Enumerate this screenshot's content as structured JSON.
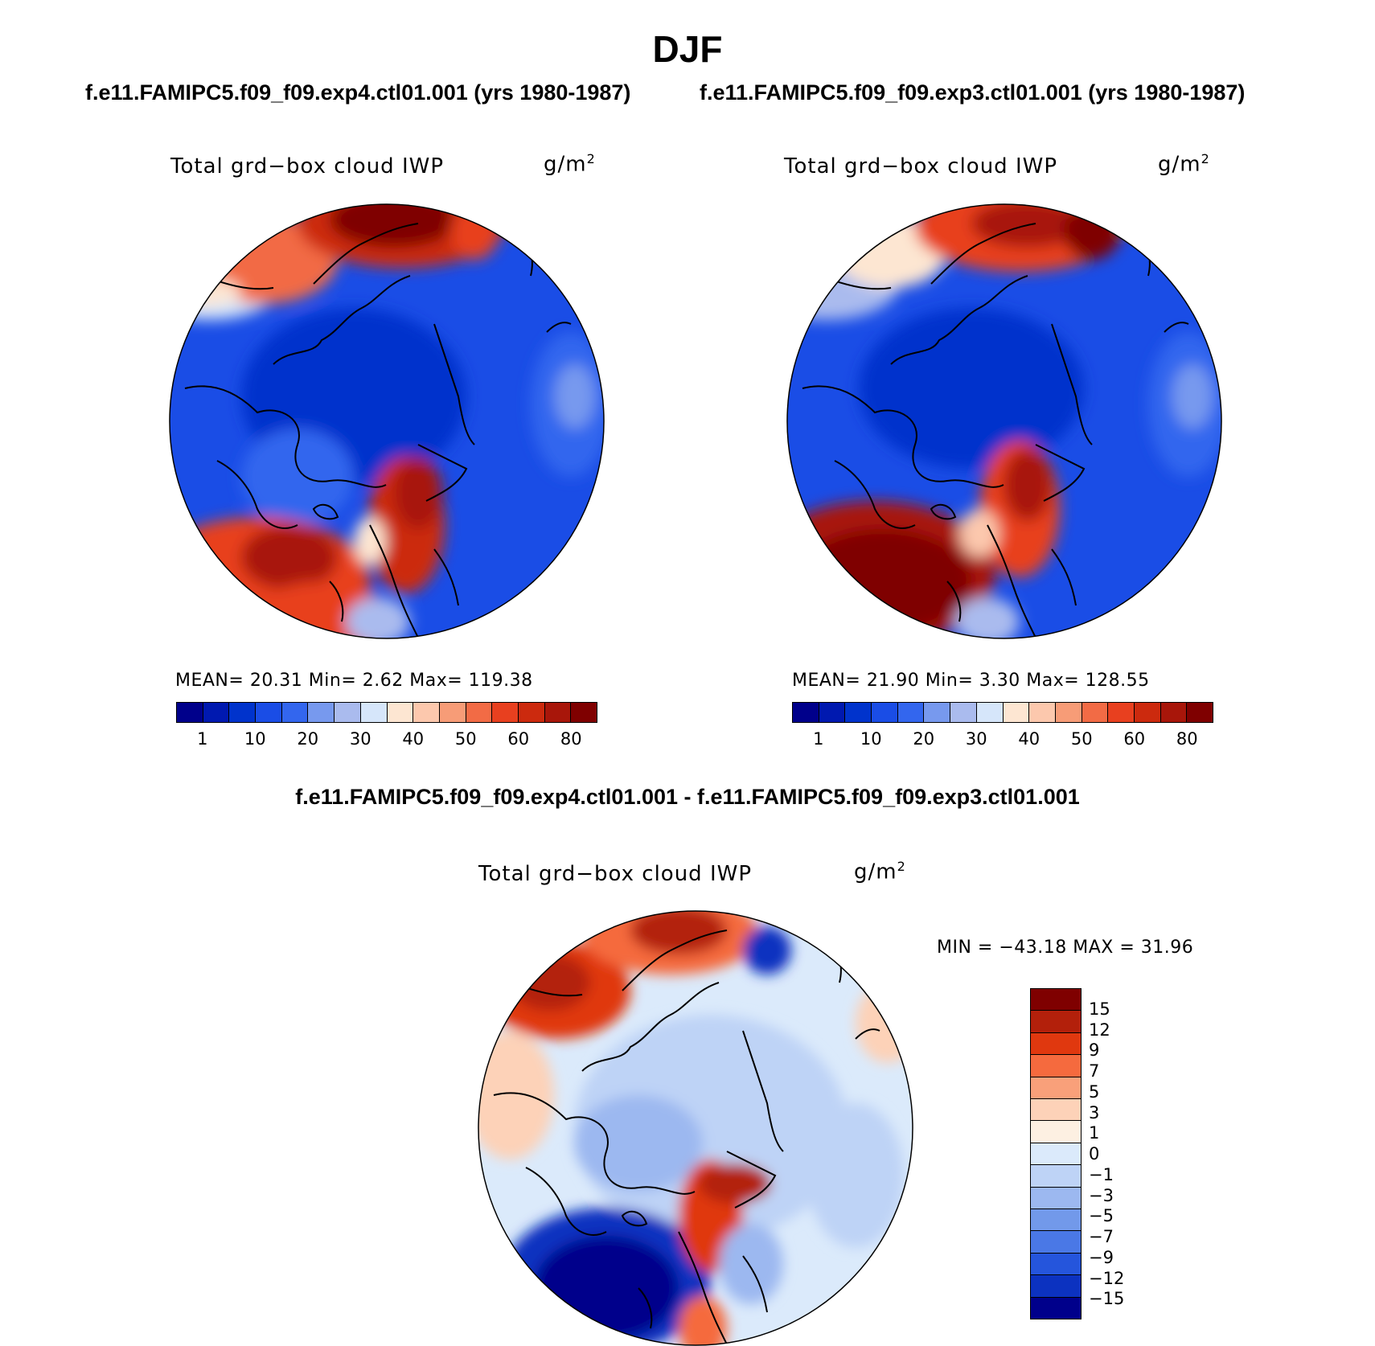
{
  "title": "DJF",
  "panels": [
    {
      "run_title": "f.e11.FAMIPC5.f09_f09.exp4.ctl01.001 (yrs 1980-1987)",
      "var_title": "Total grd−box cloud IWP",
      "unit_base": "g/m",
      "unit_exp": "2",
      "stats": "MEAN=   20.31    Min=     2.62    Max=  119.38"
    },
    {
      "run_title": "f.e11.FAMIPC5.f09_f09.exp3.ctl01.001 (yrs 1980-1987)",
      "var_title": "Total grd−box cloud IWP",
      "unit_base": "g/m",
      "unit_exp": "2",
      "stats": "MEAN=   21.90    Min=     3.30    Max=  128.55"
    }
  ],
  "abs_colorbar": {
    "colors": [
      "#00008b",
      "#0019b0",
      "#0033cc",
      "#1a4de6",
      "#3366ee",
      "#7799ee",
      "#aabbee",
      "#d6e6fa",
      "#fde6d2",
      "#fcc8ad",
      "#f79c77",
      "#f26b45",
      "#e8401f",
      "#cc2a0e",
      "#a8160a",
      "#7f0000"
    ],
    "labels": [
      "1",
      "10",
      "20",
      "30",
      "40",
      "50",
      "60",
      "80"
    ]
  },
  "diff_panel": {
    "title": "f.e11.FAMIPC5.f09_f09.exp4.ctl01.001 - f.e11.FAMIPC5.f09_f09.exp3.ctl01.001",
    "var_title": "Total grd−box cloud IWP",
    "unit_base": "g/m",
    "unit_exp": "2",
    "stats": "MIN = −43.18  MAX =   31.96"
  },
  "diff_colorbar": {
    "colors": [
      "#7f0000",
      "#b3200b",
      "#e0380f",
      "#f56a3e",
      "#f9a07a",
      "#fdd2b8",
      "#fdf0e2",
      "#dbeafb",
      "#bed3f6",
      "#9cb8f0",
      "#7299ea",
      "#4a78e6",
      "#2555dc",
      "#0c32c0",
      "#00008b"
    ],
    "labels": [
      "15",
      "12",
      "9",
      "7",
      "5",
      "3",
      "1",
      "0",
      "−1",
      "−3",
      "−5",
      "−7",
      "−9",
      "−12",
      "−15"
    ]
  }
}
